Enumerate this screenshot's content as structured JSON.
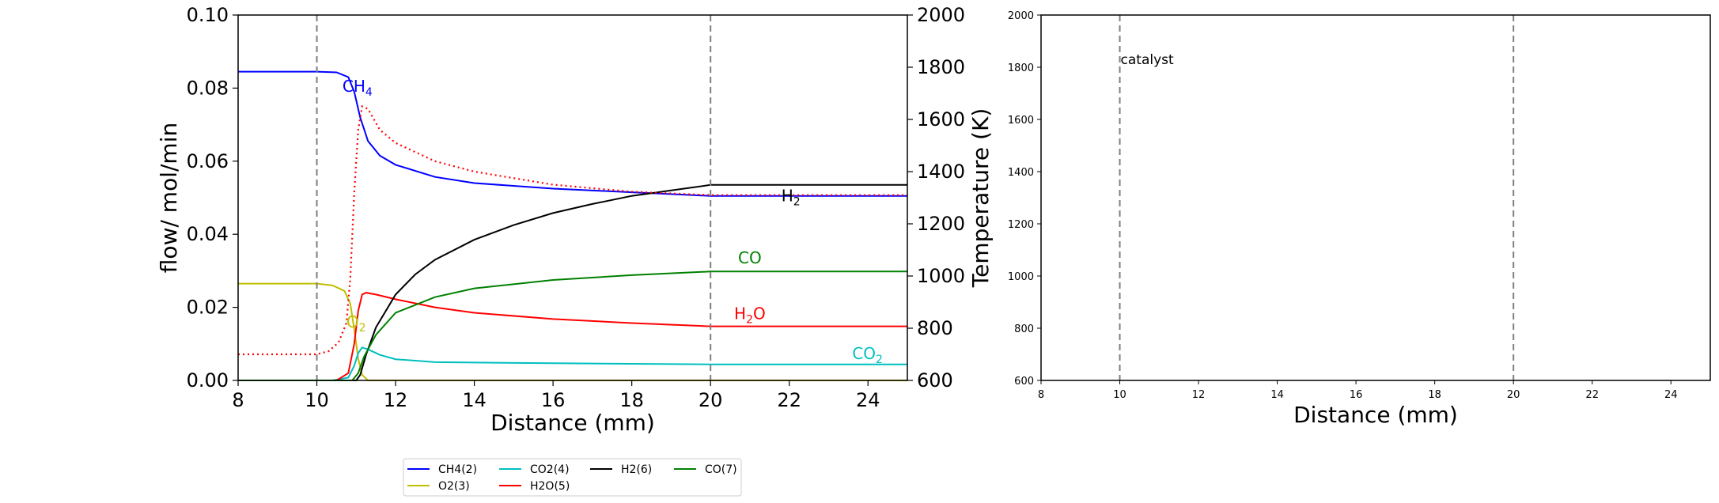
{
  "chart_data": [
    {
      "type": "line",
      "xlabel": "Distance (mm)",
      "ylabel": "flow/ mol/min",
      "y2label": "Temperature (K)",
      "xlim": [
        8,
        25
      ],
      "ylim": [
        0,
        0.1
      ],
      "y2lim": [
        600,
        2000
      ],
      "xticks": [
        "8",
        "10",
        "12",
        "14",
        "16",
        "18",
        "20",
        "22",
        "24"
      ],
      "yticks": [
        "0.00",
        "0.02",
        "0.04",
        "0.06",
        "0.08",
        "0.10"
      ],
      "y2ticks": [
        "600",
        "800",
        "1000",
        "1200",
        "1400",
        "1600",
        "1800",
        "2000"
      ],
      "vlines": [
        10,
        20
      ],
      "grid": false,
      "colors": {
        "ch4": "#0000ff",
        "o2": "#bfbf00",
        "co2": "#00bfbf",
        "h2o": "#ff0000",
        "h2": "#000000",
        "co": "#008000",
        "temp": "#ff0000"
      },
      "series": [
        {
          "name": "CH4(2)",
          "color": "#0000ff",
          "x": [
            8,
            10,
            10.5,
            10.8,
            10.95,
            11.1,
            11.3,
            11.6,
            12,
            13,
            14,
            16,
            18,
            20,
            25
          ],
          "y": [
            0.0845,
            0.0845,
            0.0843,
            0.083,
            0.079,
            0.072,
            0.0655,
            0.0615,
            0.059,
            0.0557,
            0.054,
            0.0525,
            0.0515,
            0.0505,
            0.0505
          ]
        },
        {
          "name": "O2(3)",
          "color": "#bfbf00",
          "x": [
            8,
            10,
            10.4,
            10.7,
            10.85,
            10.95,
            11.05,
            11.15,
            11.3,
            25
          ],
          "y": [
            0.0265,
            0.0265,
            0.026,
            0.0245,
            0.021,
            0.014,
            0.006,
            0.0015,
            0,
            0
          ]
        },
        {
          "name": "CO2(4)",
          "color": "#00bfbf",
          "x": [
            8,
            10.4,
            10.8,
            10.95,
            11.05,
            11.15,
            11.3,
            11.6,
            12,
            13,
            16,
            20,
            25
          ],
          "y": [
            0,
            0,
            0.0008,
            0.004,
            0.0075,
            0.009,
            0.0085,
            0.007,
            0.0058,
            0.005,
            0.0047,
            0.0044,
            0.0044
          ]
        },
        {
          "name": "H2O(5)",
          "color": "#ff0000",
          "x": [
            8,
            10.5,
            10.8,
            10.95,
            11.05,
            11.15,
            11.25,
            11.5,
            12,
            13,
            14,
            16,
            18,
            20,
            25
          ],
          "y": [
            0,
            0,
            0.002,
            0.01,
            0.019,
            0.0235,
            0.024,
            0.0235,
            0.0222,
            0.02,
            0.0185,
            0.0168,
            0.0157,
            0.0148,
            0.0148
          ]
        },
        {
          "name": "H2(6)",
          "color": "#000000",
          "x": [
            8,
            11.0,
            11.1,
            11.25,
            11.5,
            12,
            12.5,
            13,
            14,
            15,
            16,
            17,
            18,
            19,
            20,
            25
          ],
          "y": [
            0,
            0,
            0.0015,
            0.007,
            0.0145,
            0.0235,
            0.029,
            0.033,
            0.0385,
            0.0425,
            0.0458,
            0.0483,
            0.0505,
            0.052,
            0.0535,
            0.0535
          ]
        },
        {
          "name": "CO(7)",
          "color": "#008000",
          "x": [
            8,
            10.9,
            11.05,
            11.2,
            11.5,
            12,
            13,
            14,
            16,
            18,
            20,
            25
          ],
          "y": [
            0,
            0,
            0.002,
            0.0065,
            0.0125,
            0.0185,
            0.0228,
            0.0252,
            0.0275,
            0.0288,
            0.0298,
            0.0298
          ]
        },
        {
          "name": "",
          "color": "#ff0000",
          "dotted": true,
          "axis": "y2",
          "x": [
            8,
            10,
            10.3,
            10.55,
            10.75,
            10.85,
            10.95,
            11.05,
            11.15,
            11.3,
            11.6,
            12,
            13,
            14,
            16,
            18,
            20,
            25
          ],
          "y": [
            700,
            700,
            712,
            745,
            820,
            990,
            1320,
            1560,
            1650,
            1640,
            1560,
            1510,
            1440,
            1400,
            1350,
            1323,
            1310,
            1310
          ]
        }
      ],
      "annotations": [
        {
          "text": "CH",
          "sub": "4",
          "x": 10.65,
          "y": 0.079,
          "color": "#0000ff"
        },
        {
          "text": "O",
          "sub": "2",
          "x": 10.75,
          "y": 0.0145,
          "color": "#bfbf00"
        },
        {
          "text": "H",
          "sub": "2",
          "x": 21.8,
          "y": 0.049,
          "color": "#000000"
        },
        {
          "text": "CO",
          "sub": "",
          "x": 20.7,
          "y": 0.032,
          "color": "#008000"
        },
        {
          "text": "H",
          "sub": "2",
          "tail": "O",
          "x": 20.6,
          "y": 0.0168,
          "color": "#ff0000"
        },
        {
          "text": "CO",
          "sub": "2",
          "x": 23.6,
          "y": 0.0058,
          "color": "#00bfbf"
        }
      ],
      "legend": {
        "position": "bottom-center",
        "entries": [
          {
            "label": "CH4(2)",
            "color": "#0000ff"
          },
          {
            "label": "CO2(4)",
            "color": "#00bfbf"
          },
          {
            "label": "H2(6)",
            "color": "#000000"
          },
          {
            "label": "CO(7)",
            "color": "#008000"
          },
          {
            "label": "O2(3)",
            "color": "#bfbf00"
          },
          {
            "label": "H2O(5)",
            "color": "#ff0000"
          }
        ]
      }
    },
    {
      "type": "line",
      "xlabel": "Distance (mm)",
      "ylabel": "",
      "xlim": [
        8,
        25
      ],
      "ylim": [
        600,
        2000
      ],
      "xticks": [
        "8",
        "10",
        "12",
        "14",
        "16",
        "18",
        "20",
        "22",
        "24"
      ],
      "yticks": [
        "600",
        "800",
        "1000",
        "1200",
        "1400",
        "1600",
        "1800",
        "2000"
      ],
      "vlines": [
        10,
        20
      ],
      "grid": false,
      "annotations": [
        {
          "text": "catalyst",
          "x": 10,
          "y": 1830,
          "color": "#000000"
        }
      ],
      "series": []
    }
  ]
}
